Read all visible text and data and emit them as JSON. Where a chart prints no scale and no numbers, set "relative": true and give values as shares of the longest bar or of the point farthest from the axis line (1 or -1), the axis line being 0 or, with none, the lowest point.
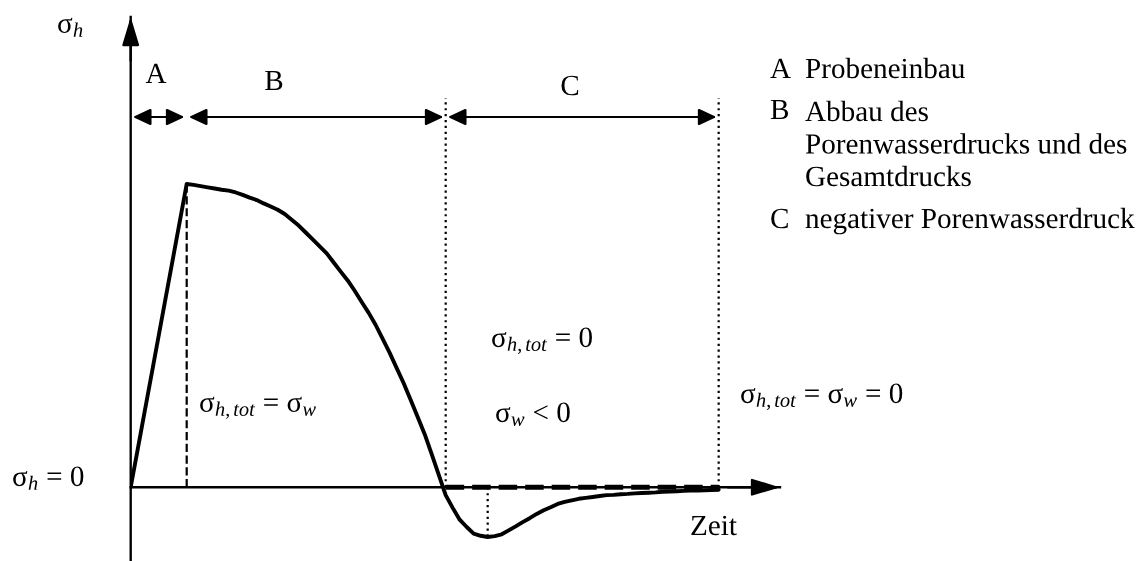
{
  "chart_data": {
    "type": "line",
    "relative": true,
    "xlabel": "Zeit",
    "categories": [
      null,
      null,
      null,
      null,
      null,
      null,
      null,
      null,
      null,
      null,
      null,
      null,
      null,
      null,
      null,
      null,
      null,
      null,
      null,
      null,
      null,
      null,
      null,
      null,
      null,
      null,
      null,
      null,
      null,
      null,
      null,
      null,
      null,
      null,
      null,
      null,
      null,
      null,
      null,
      null,
      null,
      null,
      null,
      null,
      null,
      null,
      null,
      null,
      null,
      null,
      null,
      null,
      null,
      null,
      null,
      null,
      null,
      null,
      null,
      null,
      null,
      null,
      null,
      null,
      null,
      null,
      null,
      null,
      null,
      null,
      null,
      null,
      null,
      null,
      null,
      null,
      null,
      null,
      null,
      null,
      null,
      null,
      null,
      null,
      null
    ],
    "series": [
      {
        "color": "#000000",
        "values": [
          0,
          0.125,
          0.25,
          0.375,
          0.5,
          0.625,
          0.75,
          0.875,
          1,
          0.997,
          0.993,
          0.989,
          0.985,
          0.981,
          0.978,
          0.972,
          0.964,
          0.955,
          0.947,
          0.936,
          0.926,
          0.915,
          0.901,
          0.882,
          0.863,
          0.84,
          0.817,
          0.794,
          0.771,
          0.741,
          0.711,
          0.682,
          0.648,
          0.611,
          0.575,
          0.535,
          0.489,
          0.443,
          0.393,
          0.343,
          0.288,
          0.232,
          0.175,
          0.109,
          0.042,
          -0.026,
          -0.068,
          -0.107,
          -0.131,
          -0.153,
          -0.16,
          -0.164,
          -0.161,
          -0.155,
          -0.142,
          -0.129,
          -0.115,
          -0.102,
          -0.088,
          -0.076,
          -0.066,
          -0.055,
          -0.048,
          -0.043,
          -0.038,
          -0.035,
          -0.032,
          -0.029,
          -0.026,
          -0.025,
          -0.023,
          -0.022,
          -0.02,
          -0.019,
          -0.018,
          -0.017,
          -0.015,
          -0.014,
          -0.013,
          -0.012,
          -0.011,
          -0.011,
          -0.01,
          -0.009,
          -0.008
        ]
      },
      {
        "color": "#000000",
        "line_style": "dashed",
        "values": [
          null,
          null,
          null,
          null,
          null,
          null,
          null,
          null,
          null,
          null,
          null,
          null,
          null,
          null,
          null,
          null,
          null,
          null,
          null,
          null,
          null,
          null,
          null,
          null,
          null,
          null,
          null,
          null,
          null,
          null,
          null,
          null,
          null,
          null,
          null,
          null,
          null,
          null,
          null,
          null,
          null,
          null,
          null,
          null,
          null,
          0,
          0,
          0,
          0,
          0,
          0,
          0,
          0,
          0,
          0,
          0,
          0,
          0,
          0,
          0,
          0,
          0,
          0,
          0,
          0,
          0,
          0,
          0,
          0,
          0,
          0,
          0,
          0,
          0,
          0,
          0,
          0,
          0,
          0,
          0,
          0,
          0,
          0,
          0,
          0
        ]
      }
    ],
    "annotations": [
      "σ$_{h}$",
      "σ$_{h}$ = 0",
      "A",
      "B",
      "C",
      "σ$_{h,tot}$ = σ$_{w}$",
      "σ$_{h,tot}$ = 0",
      "σ$_{w}$ < 0",
      "σ$_{h,tot}$ = σ$_{w}$ = 0",
      "A Probeneinbau",
      "B Abbau des\nPorenwasserdrucks und des\nGesamtdrucks",
      "C negativer Porenwasserdruck"
    ]
  }
}
